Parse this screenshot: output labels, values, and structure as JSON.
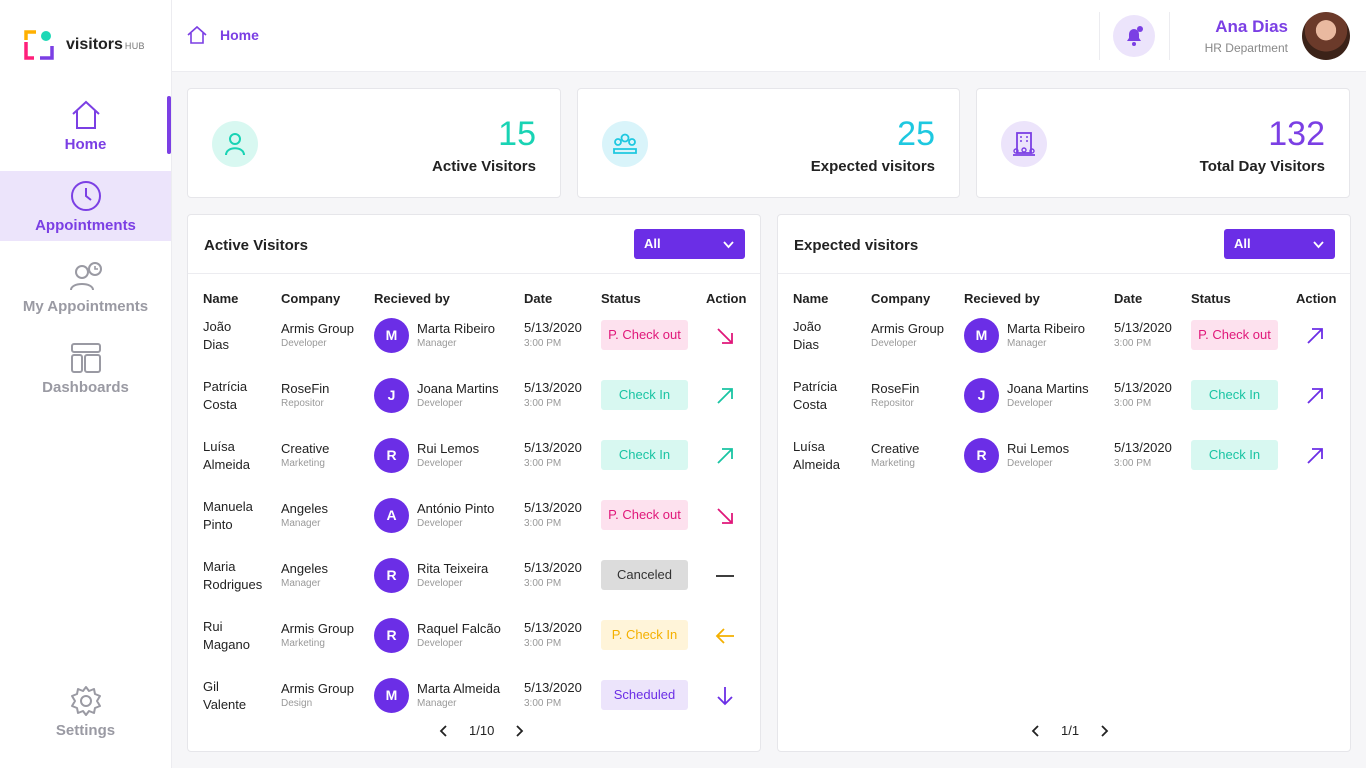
{
  "app": {
    "logo_text": "visitors",
    "logo_sub": "HUB"
  },
  "sidebar": {
    "items": [
      {
        "label": "Home",
        "icon": "home-icon"
      },
      {
        "label": "Appointments",
        "icon": "clock-icon"
      },
      {
        "label": "My Appointments",
        "icon": "user-clock-icon"
      },
      {
        "label": "Dashboards",
        "icon": "dashboard-icon"
      }
    ],
    "settings_label": "Settings"
  },
  "header": {
    "breadcrumb": "Home",
    "user_name": "Ana Dias",
    "user_dept": "HR Department"
  },
  "stats": [
    {
      "value": "15",
      "label": "Active Visitors",
      "color": "#19d3b4",
      "icon": "user-icon"
    },
    {
      "value": "25",
      "label": "Expected visitors",
      "color": "#1ec8e0",
      "icon": "group-icon"
    },
    {
      "value": "132",
      "label": "Total Day Visitors",
      "color": "#7b3fe4",
      "icon": "building-icon"
    }
  ],
  "columns": {
    "name": "Name",
    "company": "Company",
    "received": "Recieved by",
    "date": "Date",
    "status": "Status",
    "action": "Action"
  },
  "active_panel": {
    "title": "Active Visitors",
    "filter": "All",
    "pager": "1/10",
    "rows": [
      {
        "first": "João",
        "last": "Dias",
        "company": "Armis Group",
        "role": "Developer",
        "initial": "M",
        "receiver": "Marta Ribeiro",
        "receiver_role": "Manager",
        "date": "5/13/2020",
        "time": "3:00 PM",
        "status": "P. Check out",
        "action": "arrow-down-right-icon"
      },
      {
        "first": "Patrícia",
        "last": "Costa",
        "company": "RoseFin",
        "role": "Repositor",
        "initial": "J",
        "receiver": "Joana Martins",
        "receiver_role": "Developer",
        "date": "5/13/2020",
        "time": "3:00 PM",
        "status": "Check In",
        "action": "arrow-up-right-icon"
      },
      {
        "first": "Luísa",
        "last": "Almeida",
        "company": "Creative",
        "role": "Marketing",
        "initial": "R",
        "receiver": "Rui Lemos",
        "receiver_role": "Developer",
        "date": "5/13/2020",
        "time": "3:00 PM",
        "status": "Check In",
        "action": "arrow-up-right-icon"
      },
      {
        "first": "Manuela",
        "last": "Pinto",
        "company": "Angeles",
        "role": "Manager",
        "initial": "A",
        "receiver": "António Pinto",
        "receiver_role": "Developer",
        "date": "5/13/2020",
        "time": "3:00 PM",
        "status": "P. Check out",
        "action": "arrow-down-right-icon"
      },
      {
        "first": "Maria",
        "last": "Rodrigues",
        "company": "Angeles",
        "role": "Manager",
        "initial": "R",
        "receiver": "Rita Teixeira",
        "receiver_role": "Developer",
        "date": "5/13/2020",
        "time": "3:00 PM",
        "status": "Canceled",
        "action": "dash-icon"
      },
      {
        "first": "Rui",
        "last": "Magano",
        "company": "Armis Group",
        "role": "Marketing",
        "initial": "R",
        "receiver": "Raquel Falcão",
        "receiver_role": "Developer",
        "date": "5/13/2020",
        "time": "3:00 PM",
        "status": "P. Check In",
        "action": "arrow-left-icon"
      },
      {
        "first": "Gil",
        "last": "Valente",
        "company": "Armis Group",
        "role": "Design",
        "initial": "M",
        "receiver": "Marta Almeida",
        "receiver_role": "Manager",
        "date": "5/13/2020",
        "time": "3:00 PM",
        "status": "Scheduled",
        "action": "arrow-down-icon"
      }
    ]
  },
  "expected_panel": {
    "title": "Expected visitors",
    "filter": "All",
    "pager": "1/1",
    "rows": [
      {
        "first": "João",
        "last": "Dias",
        "company": "Armis Group",
        "role": "Developer",
        "initial": "M",
        "receiver": "Marta Ribeiro",
        "receiver_role": "Manager",
        "date": "5/13/2020",
        "time": "3:00 PM",
        "status": "P. Check out",
        "action": "arrow-up-right-icon"
      },
      {
        "first": "Patrícia",
        "last": "Costa",
        "company": "RoseFin",
        "role": "Repositor",
        "initial": "J",
        "receiver": "Joana Martins",
        "receiver_role": "Developer",
        "date": "5/13/2020",
        "time": "3:00 PM",
        "status": "Check In",
        "action": "arrow-up-right-icon"
      },
      {
        "first": "Luísa",
        "last": "Almeida",
        "company": "Creative",
        "role": "Marketing",
        "initial": "R",
        "receiver": "Rui Lemos",
        "receiver_role": "Developer",
        "date": "5/13/2020",
        "time": "3:00 PM",
        "status": "Check In",
        "action": "arrow-up-right-icon"
      }
    ]
  },
  "status_colors": {
    "P. Check out": {
      "bg": "#fde1ee",
      "fg": "#e0177a"
    },
    "Check In": {
      "bg": "#d8f8f1",
      "fg": "#19c4a3"
    },
    "Canceled": {
      "bg": "#dcdcdc",
      "fg": "#333333"
    },
    "P. Check In": {
      "bg": "#fff4d9",
      "fg": "#f4b000"
    },
    "Scheduled": {
      "bg": "#ece4fb",
      "fg": "#6b2ee6"
    }
  }
}
